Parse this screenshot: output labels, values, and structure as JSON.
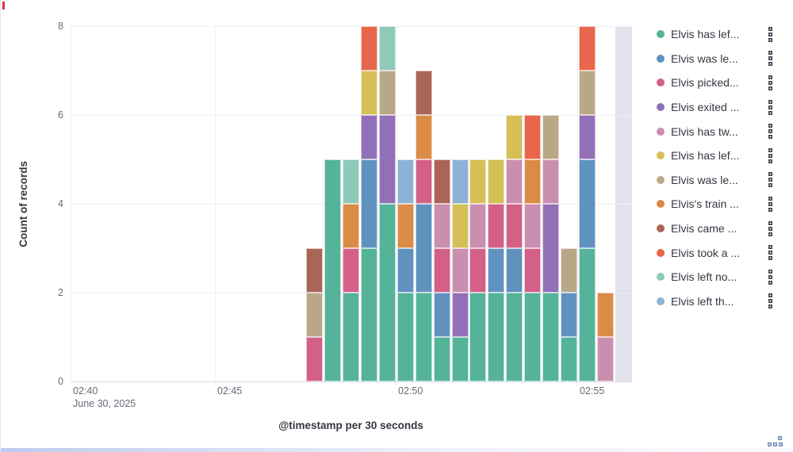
{
  "icons": {
    "legend_actions": "vertical-dots-icon",
    "resize_handle": "resize-grip-icon"
  },
  "colors": {
    "background": "#FFFFFF",
    "axis_text": "#646A77",
    "title_text": "#343741",
    "legend_text": "#343741",
    "gridline": "#EDF0F6",
    "partial_bucket": "#E1E4EA",
    "artifact_red": "#E8322E"
  },
  "chart_data": {
    "type": "bar",
    "stacked": true,
    "title": "",
    "xlabel": "@timestamp per 30 seconds",
    "ylabel": "Count of records",
    "ylim": [
      0,
      8
    ],
    "yticks": [
      0,
      2,
      4,
      6,
      8
    ],
    "xticks": [
      {
        "label": "02:40",
        "sublabel": "June 30, 2025"
      },
      {
        "label": "02:45"
      },
      {
        "label": "02:50"
      },
      {
        "label": "02:55"
      }
    ],
    "legend_position": "right",
    "grid": true,
    "series": [
      {
        "label": "Elvis has lef...",
        "color": "#54B399"
      },
      {
        "label": "Elvis was le...",
        "color": "#6092C0"
      },
      {
        "label": "Elvis picked...",
        "color": "#D36086"
      },
      {
        "label": "Elvis exited ...",
        "color": "#9170B8"
      },
      {
        "label": "Elvis has tw...",
        "color": "#CA8EAE"
      },
      {
        "label": "Elvis has lef...",
        "color": "#D6BF57"
      },
      {
        "label": "Elvis was le...",
        "color": "#B9A888"
      },
      {
        "label": "Elvis's train ...",
        "color": "#DA8B45"
      },
      {
        "label": "Elvis came ...",
        "color": "#AA6556"
      },
      {
        "label": "Elvis took a ...",
        "color": "#E7664C"
      },
      {
        "label": "Elvis left no...",
        "color": "#8FC9B7"
      },
      {
        "label": "Elvis left th...",
        "color": "#8CB3D6"
      }
    ],
    "bars": [
      {
        "time": "02:47:30",
        "total": 3,
        "segments": [
          {
            "series": 2,
            "count": 1
          },
          {
            "series": 6,
            "count": 1
          },
          {
            "series": 8,
            "count": 1
          }
        ]
      },
      {
        "time": "02:48:00",
        "total": 5,
        "segments": [
          {
            "series": 0,
            "count": 5
          }
        ]
      },
      {
        "time": "02:48:30",
        "total": 5,
        "segments": [
          {
            "series": 0,
            "count": 2
          },
          {
            "series": 2,
            "count": 1
          },
          {
            "series": 7,
            "count": 1
          },
          {
            "series": 10,
            "count": 1
          }
        ]
      },
      {
        "time": "02:49:00",
        "total": 8,
        "segments": [
          {
            "series": 0,
            "count": 3
          },
          {
            "series": 1,
            "count": 2
          },
          {
            "series": 3,
            "count": 1
          },
          {
            "series": 5,
            "count": 1
          },
          {
            "series": 9,
            "count": 1
          }
        ]
      },
      {
        "time": "02:49:30",
        "total": 8,
        "segments": [
          {
            "series": 0,
            "count": 4
          },
          {
            "series": 3,
            "count": 2
          },
          {
            "series": 6,
            "count": 1
          },
          {
            "series": 10,
            "count": 1
          }
        ]
      },
      {
        "time": "02:50:00",
        "total": 5,
        "segments": [
          {
            "series": 0,
            "count": 2
          },
          {
            "series": 1,
            "count": 1
          },
          {
            "series": 7,
            "count": 1
          },
          {
            "series": 11,
            "count": 1
          }
        ]
      },
      {
        "time": "02:50:30",
        "total": 7,
        "segments": [
          {
            "series": 0,
            "count": 2
          },
          {
            "series": 1,
            "count": 2
          },
          {
            "series": 2,
            "count": 1
          },
          {
            "series": 7,
            "count": 1
          },
          {
            "series": 8,
            "count": 1
          }
        ]
      },
      {
        "time": "02:51:00",
        "total": 5,
        "segments": [
          {
            "series": 0,
            "count": 1
          },
          {
            "series": 1,
            "count": 1
          },
          {
            "series": 2,
            "count": 1
          },
          {
            "series": 4,
            "count": 1
          },
          {
            "series": 8,
            "count": 1
          }
        ]
      },
      {
        "time": "02:51:30",
        "total": 5,
        "segments": [
          {
            "series": 0,
            "count": 1
          },
          {
            "series": 3,
            "count": 1
          },
          {
            "series": 4,
            "count": 1
          },
          {
            "series": 5,
            "count": 1
          },
          {
            "series": 11,
            "count": 1
          }
        ]
      },
      {
        "time": "02:52:00",
        "total": 5,
        "segments": [
          {
            "series": 0,
            "count": 2
          },
          {
            "series": 2,
            "count": 1
          },
          {
            "series": 4,
            "count": 1
          },
          {
            "series": 5,
            "count": 1
          }
        ]
      },
      {
        "time": "02:52:30",
        "total": 5,
        "segments": [
          {
            "series": 0,
            "count": 2
          },
          {
            "series": 1,
            "count": 1
          },
          {
            "series": 2,
            "count": 1
          },
          {
            "series": 5,
            "count": 1
          }
        ]
      },
      {
        "time": "02:53:00",
        "total": 6,
        "segments": [
          {
            "series": 0,
            "count": 2
          },
          {
            "series": 1,
            "count": 1
          },
          {
            "series": 2,
            "count": 1
          },
          {
            "series": 4,
            "count": 1
          },
          {
            "series": 5,
            "count": 1
          }
        ]
      },
      {
        "time": "02:53:30",
        "total": 6,
        "segments": [
          {
            "series": 0,
            "count": 2
          },
          {
            "series": 2,
            "count": 1
          },
          {
            "series": 4,
            "count": 1
          },
          {
            "series": 7,
            "count": 1
          },
          {
            "series": 9,
            "count": 1
          }
        ]
      },
      {
        "time": "02:54:00",
        "total": 6,
        "segments": [
          {
            "series": 0,
            "count": 2
          },
          {
            "series": 3,
            "count": 2
          },
          {
            "series": 4,
            "count": 1
          },
          {
            "series": 6,
            "count": 1
          }
        ]
      },
      {
        "time": "02:54:30",
        "total": 3,
        "segments": [
          {
            "series": 0,
            "count": 1
          },
          {
            "series": 1,
            "count": 1
          },
          {
            "series": 6,
            "count": 1
          }
        ]
      },
      {
        "time": "02:55:00",
        "total": 8,
        "segments": [
          {
            "series": 0,
            "count": 3
          },
          {
            "series": 1,
            "count": 2
          },
          {
            "series": 3,
            "count": 1
          },
          {
            "series": 6,
            "count": 1
          },
          {
            "series": 9,
            "count": 1
          }
        ]
      },
      {
        "time": "02:55:30",
        "total": 2,
        "segments": [
          {
            "series": 4,
            "count": 1
          },
          {
            "series": 7,
            "count": 1
          }
        ]
      }
    ],
    "partial_bucket": {
      "time": "02:56:00",
      "note": "current partial bucket shaded gray"
    }
  }
}
